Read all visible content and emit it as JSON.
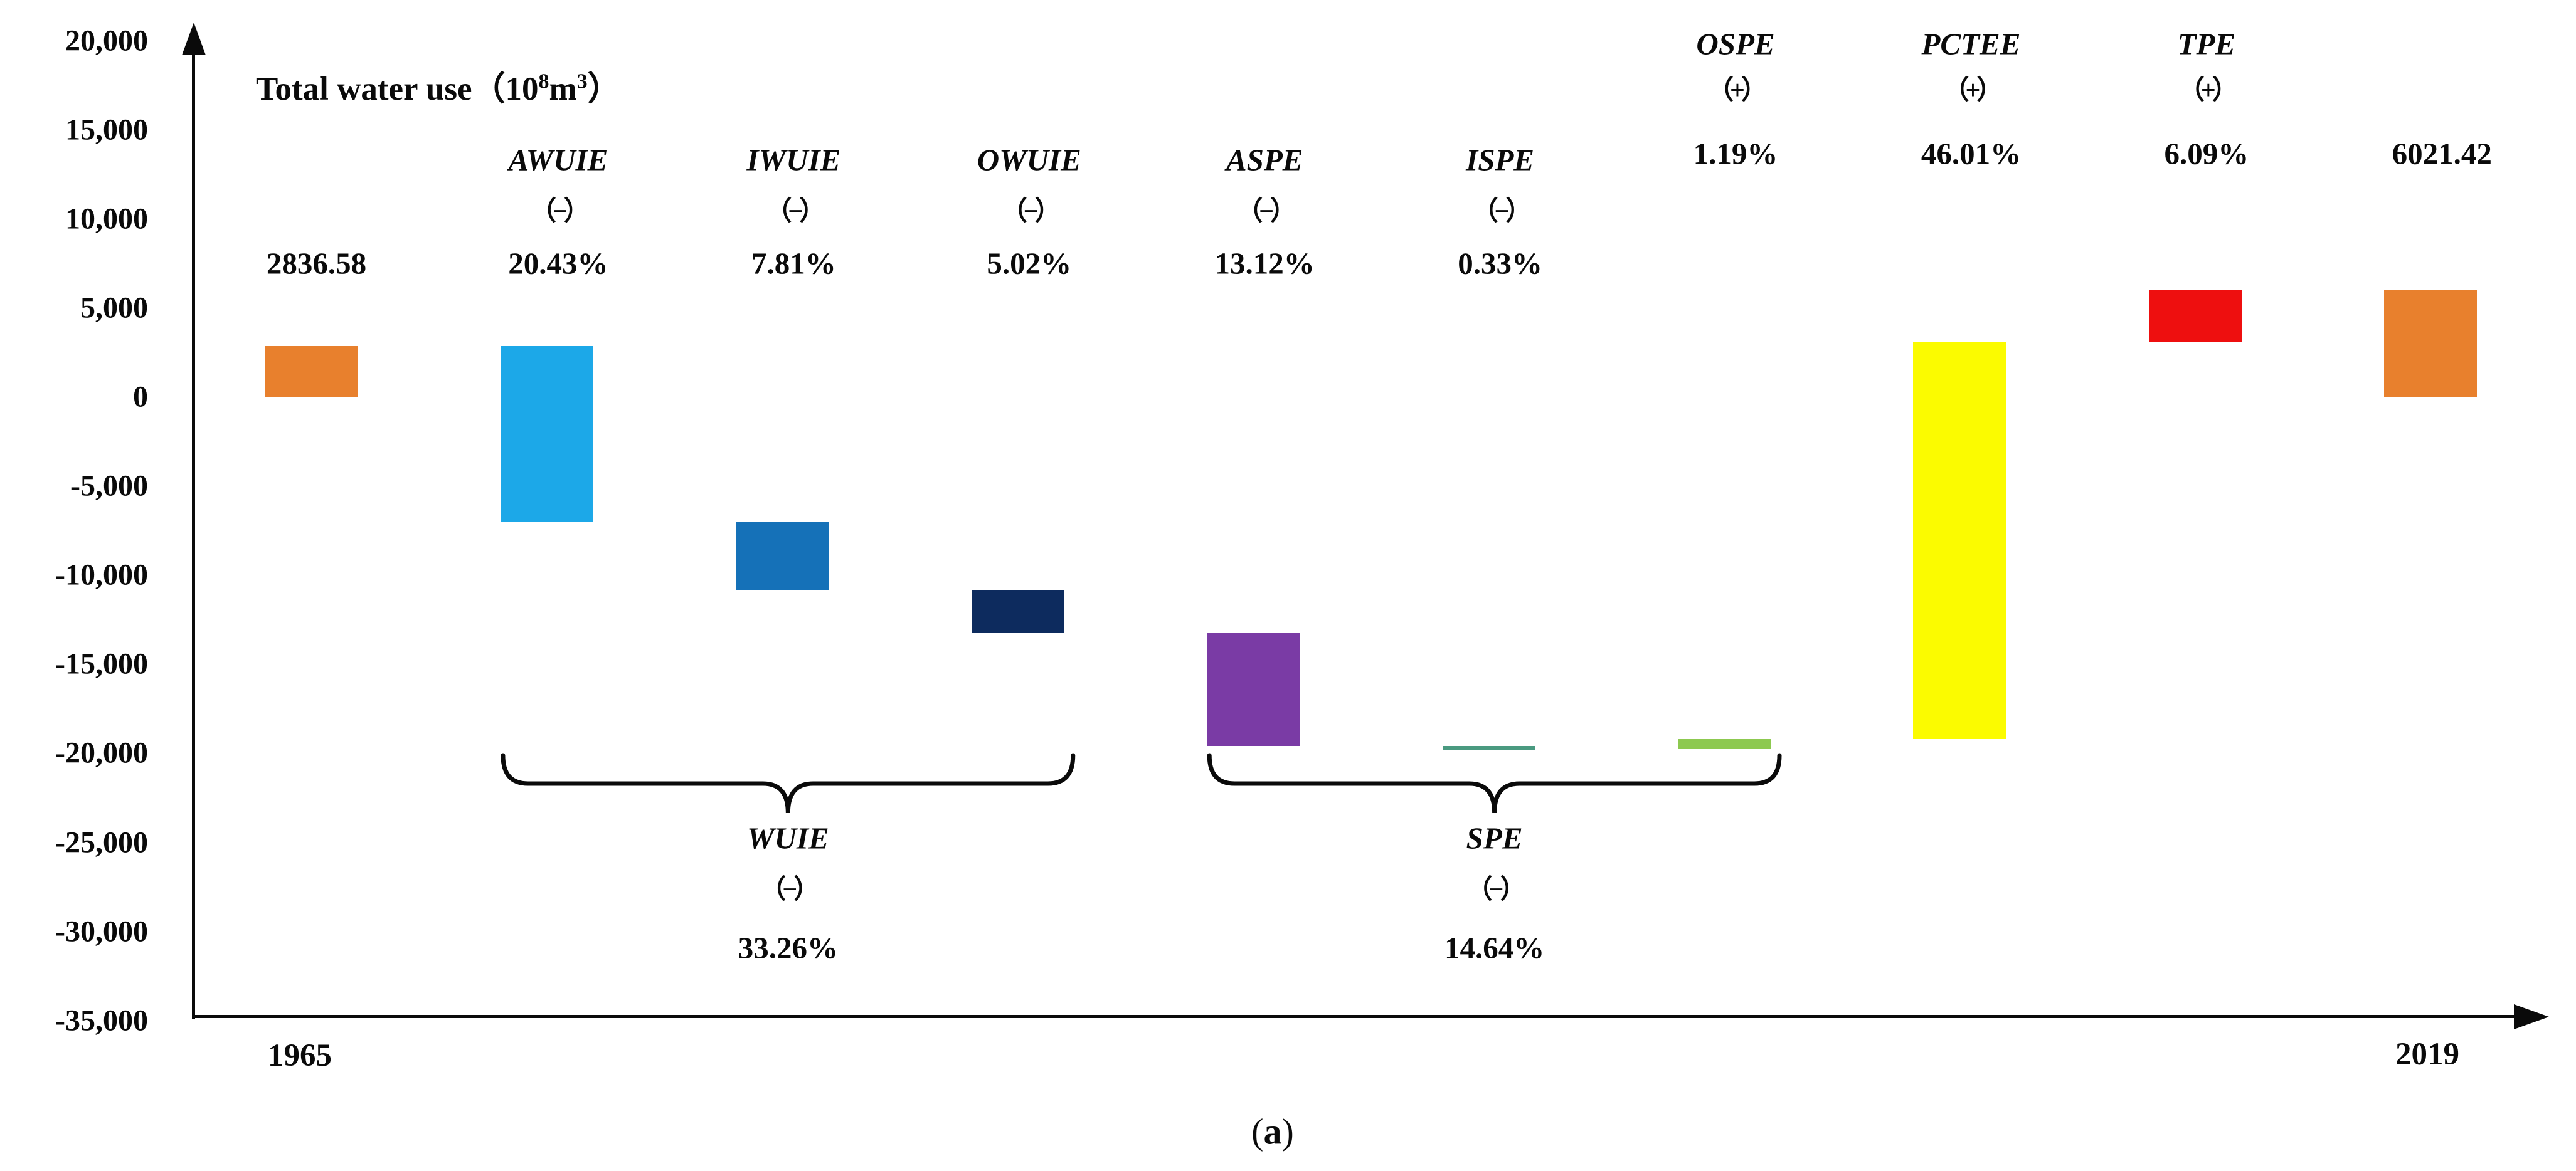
{
  "title": {
    "prefix": "Total water use（10",
    "sup_a": "8",
    "mid": "m",
    "sup_b": "3",
    "suffix": "）"
  },
  "caption": {
    "open": "(",
    "letter": "a",
    "close": ")"
  },
  "x_axis": {
    "start_label": "1965",
    "end_label": "2019"
  },
  "chart_data": {
    "type": "bar",
    "subtype": "waterfall",
    "title": "Total water use（10⁸m³）",
    "ylabel": "Total water use (10^8 m^3)",
    "ylim": [
      -35000,
      20000
    ],
    "ytick_step": 5000,
    "grid": false,
    "legend": "none",
    "start_value": 2836.58,
    "end_value": 6021.42,
    "yticks": [
      {
        "value": 20000,
        "label": "20,000"
      },
      {
        "value": 15000,
        "label": "15,000"
      },
      {
        "value": 10000,
        "label": "10,000"
      },
      {
        "value": 5000,
        "label": "5,000"
      },
      {
        "value": 0,
        "label": "0"
      },
      {
        "value": -5000,
        "label": "-5,000"
      },
      {
        "value": -10000,
        "label": "-10,000"
      },
      {
        "value": -15000,
        "label": "-15,000"
      },
      {
        "value": -20000,
        "label": "-20,000"
      },
      {
        "value": -25000,
        "label": "-25,000"
      },
      {
        "value": -30000,
        "label": "-30,000"
      },
      {
        "value": -35000,
        "label": "-35,000"
      }
    ],
    "bars": [
      {
        "id": "start-1965",
        "name": "1965",
        "value_label": "2836.58",
        "label_pos": "value-mid",
        "from": 0,
        "to": 2836.58,
        "color": "#E8802D"
      },
      {
        "id": "AWUIE",
        "name": "AWUIE",
        "sign": "（−）",
        "pct": "20.43%",
        "label_pos": "mid",
        "from": 2836.58,
        "to": -7051.9,
        "color": "#1CA8E8"
      },
      {
        "id": "IWUIE",
        "name": "IWUIE",
        "sign": "（−）",
        "pct": "7.81%",
        "label_pos": "mid",
        "from": -7051.9,
        "to": -10832.1,
        "color": "#1571B8"
      },
      {
        "id": "OWUIE",
        "name": "OWUIE",
        "sign": "（−）",
        "pct": "5.02%",
        "label_pos": "mid",
        "from": -10832.1,
        "to": -13261.9,
        "color": "#0D2B5E"
      },
      {
        "id": "ASPE",
        "name": "ASPE",
        "sign": "（−）",
        "pct": "13.12%",
        "label_pos": "mid",
        "from": -13261.9,
        "to": -19612.2,
        "color": "#7A3BA5"
      },
      {
        "id": "ISPE",
        "name": "ISPE",
        "sign": "（−）",
        "pct": "0.33%",
        "label_pos": "mid",
        "from": -19612.2,
        "to": -19771.9,
        "color": "#4A9A80"
      },
      {
        "id": "OSPE",
        "name": "OSPE",
        "sign": "（+）",
        "pct": "1.19%",
        "label_pos": "top",
        "from": -19771.9,
        "to": -19195.9,
        "color": "#8DC950"
      },
      {
        "id": "PCTEE",
        "name": "PCTEE",
        "sign": "（+）",
        "pct": "46.01%",
        "label_pos": "top",
        "from": -19195.9,
        "to": 3073.9,
        "color": "#FBFB00"
      },
      {
        "id": "TPE",
        "name": "TPE",
        "sign": "（+）",
        "pct": "6.09%",
        "label_pos": "top",
        "from": 3073.9,
        "to": 6021.6,
        "color": "#EE0F0F"
      },
      {
        "id": "end-2019",
        "name": "2019",
        "value_label": "6021.42",
        "label_pos": "value-top",
        "from": 0,
        "to": 6021.42,
        "color": "#E8802D"
      }
    ],
    "groups": [
      {
        "name": "WUIE",
        "sign": "（−）",
        "pct": "33.26%",
        "from_bar": 1,
        "to_bar": 3
      },
      {
        "name": "SPE",
        "sign": "（−）",
        "pct": "14.64%",
        "from_bar": 4,
        "to_bar": 6
      }
    ]
  }
}
